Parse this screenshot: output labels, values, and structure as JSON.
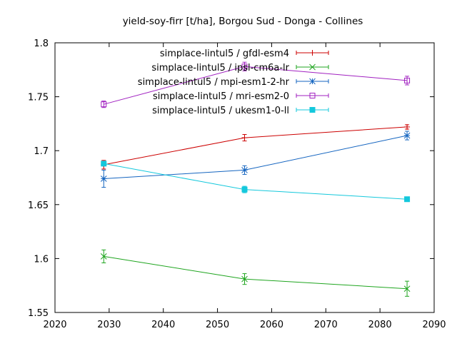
{
  "chart_data": {
    "type": "line",
    "title": "yield-soy-firr [t/ha], Borgou Sud - Donga - Collines",
    "xlabel": "",
    "ylabel": "",
    "xlim": [
      2020,
      2090
    ],
    "ylim": [
      1.55,
      1.8
    ],
    "x_ticks": [
      "2020",
      "2030",
      "2040",
      "2050",
      "2060",
      "2070",
      "2080",
      "2090"
    ],
    "y_ticks": [
      "1.55",
      "1.6",
      "1.65",
      "1.7",
      "1.75",
      "1.8"
    ],
    "grid": false,
    "legend_position": "top-center",
    "series": [
      {
        "name": "simplace-lintul5 / gfdl-esm4",
        "color": "#cc0000",
        "marker": "plus",
        "x": [
          2029,
          2055,
          2085
        ],
        "y": [
          1.687,
          1.712,
          1.722
        ],
        "err": [
          0.004,
          0.003,
          0.002
        ]
      },
      {
        "name": "simplace-lintul5 / ipsl-cm6a-lr",
        "color": "#1fa51f",
        "marker": "cross",
        "x": [
          2029,
          2055,
          2085
        ],
        "y": [
          1.602,
          1.581,
          1.572
        ],
        "err": [
          0.006,
          0.005,
          0.007
        ]
      },
      {
        "name": "simplace-lintul5 / mpi-esm1-2-hr",
        "color": "#1565c0",
        "marker": "star",
        "x": [
          2029,
          2055,
          2085
        ],
        "y": [
          1.674,
          1.682,
          1.714
        ],
        "err": [
          0.008,
          0.004,
          0.004
        ]
      },
      {
        "name": "simplace-lintul5 / mri-esm2-0",
        "color": "#a020c0",
        "marker": "open-square",
        "x": [
          2029,
          2055,
          2085
        ],
        "y": [
          1.743,
          1.778,
          1.765
        ],
        "err": [
          0.003,
          0.004,
          0.004
        ]
      },
      {
        "name": "simplace-lintul5 / ukesm1-0-ll",
        "color": "#14c8dc",
        "marker": "filled-square",
        "x": [
          2029,
          2055,
          2085
        ],
        "y": [
          1.688,
          1.664,
          1.655
        ],
        "err": [
          0.002,
          0.003,
          0.002
        ]
      }
    ]
  }
}
